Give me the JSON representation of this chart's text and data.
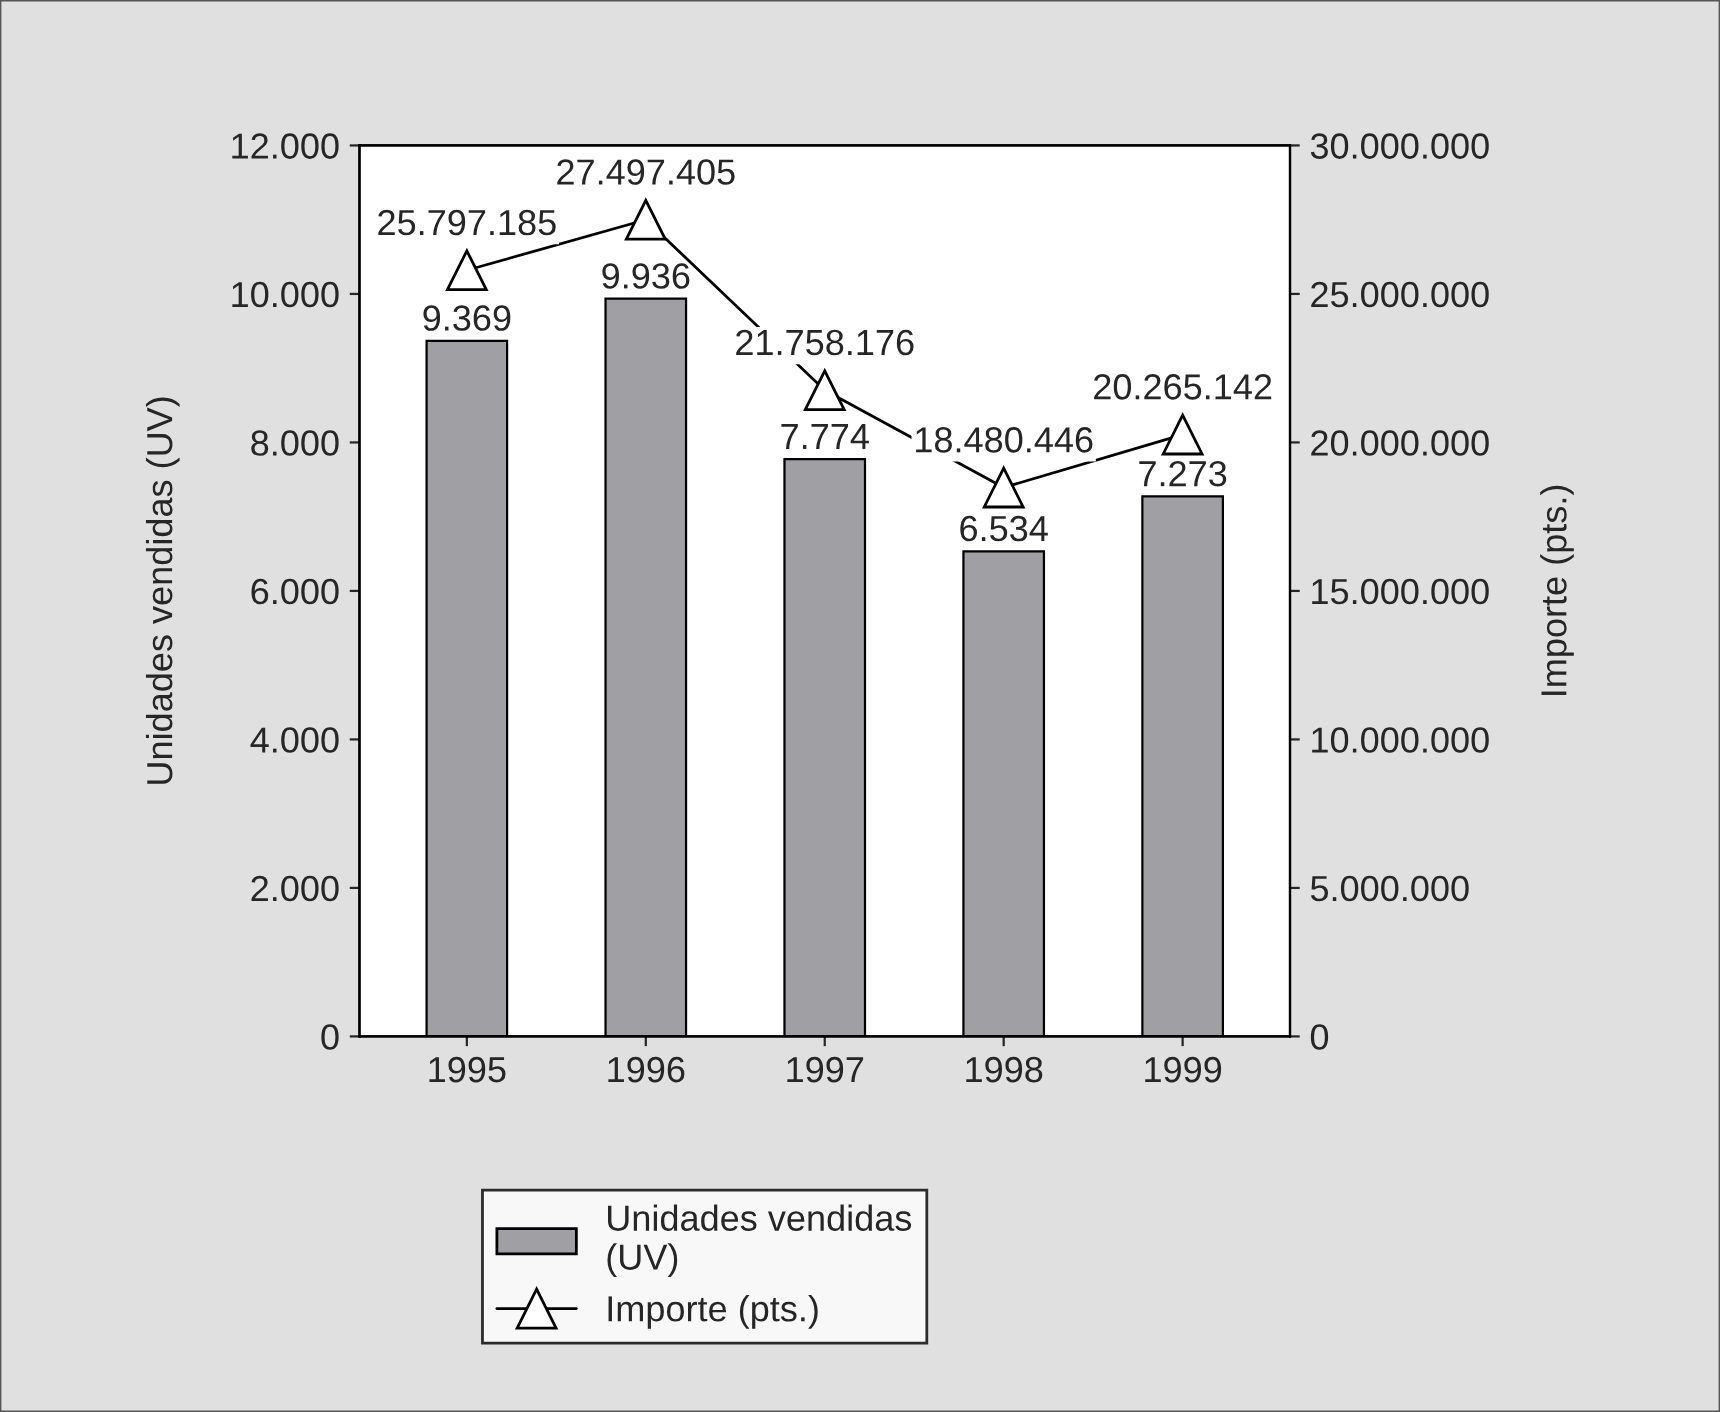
{
  "chart_data": {
    "type": "bar",
    "ylabel": "Unidades vendidas (UV)",
    "y2label": "Importe (pts.)",
    "categories": [
      "1995",
      "1996",
      "1997",
      "1998",
      "1999"
    ],
    "series": [
      {
        "name": "Unidades vendidas (UV)",
        "color": "#a0a0a4",
        "values": [
          9369,
          9936,
          7774,
          6534,
          7273
        ],
        "value_labels": [
          "9.369",
          "9.936",
          "7.774",
          "6.534",
          "7.273"
        ]
      },
      {
        "name": "Importe (pts.)",
        "type": "line",
        "axis": "y2",
        "color": "#000000",
        "marker": "triangle",
        "values": [
          25797185,
          27497405,
          21758176,
          18480446,
          20265142
        ],
        "value_labels": [
          "25.797.185",
          "27.497.405",
          "21.758.176",
          "18.480.446",
          "20.265.142"
        ]
      }
    ],
    "ylim": [
      0,
      12000
    ],
    "yticks": [
      {
        "value": 0,
        "label": "0"
      },
      {
        "value": 2000,
        "label": "2.000"
      },
      {
        "value": 4000,
        "label": "4.000"
      },
      {
        "value": 6000,
        "label": "6.000"
      },
      {
        "value": 8000,
        "label": "8.000"
      },
      {
        "value": 10000,
        "label": "10.000"
      },
      {
        "value": 12000,
        "label": "12.000"
      }
    ],
    "y2lim": [
      0,
      30000000
    ],
    "y2ticks": [
      {
        "value": 0,
        "label": "0"
      },
      {
        "value": 5000000,
        "label": "5.000.000"
      },
      {
        "value": 10000000,
        "label": "10.000.000"
      },
      {
        "value": 15000000,
        "label": "15.000.000"
      },
      {
        "value": 20000000,
        "label": "20.000.000"
      },
      {
        "value": 25000000,
        "label": "25.000.000"
      },
      {
        "value": 30000000,
        "label": "30.000.000"
      }
    ],
    "legend": "bottom"
  }
}
